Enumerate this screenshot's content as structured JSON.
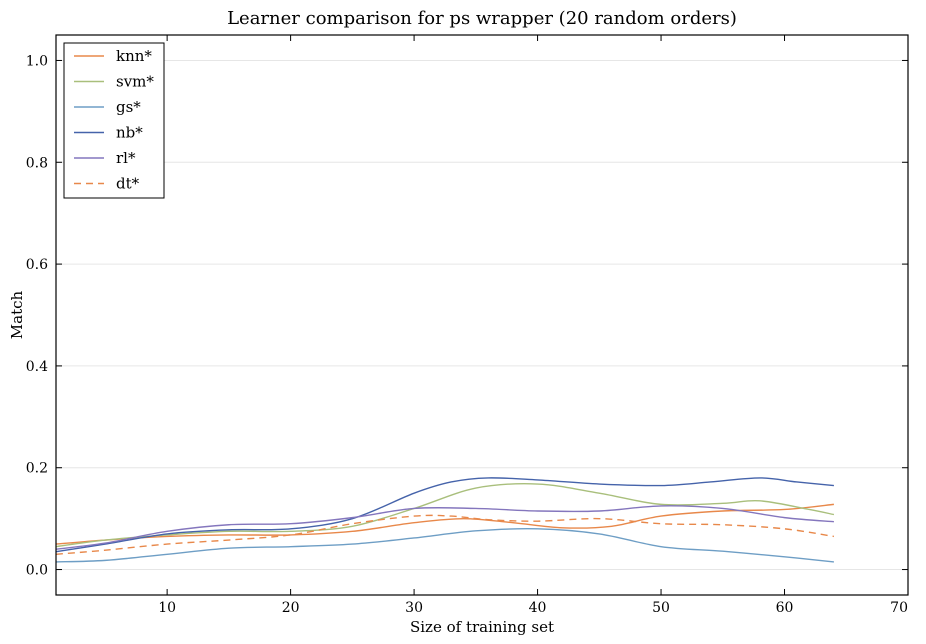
{
  "chart_data": {
    "type": "line",
    "title": "Learner comparison for ps wrapper (20 random orders)",
    "xlabel": "Size of training set",
    "ylabel": "Match",
    "xlim": [
      1,
      70
    ],
    "ylim": [
      -0.05,
      1.05
    ],
    "xticks": [
      10,
      20,
      30,
      40,
      50,
      60,
      70
    ],
    "yticks": [
      0.0,
      0.2,
      0.4,
      0.6,
      0.8,
      1.0
    ],
    "xtick_labels": [
      "10",
      "20",
      "30",
      "40",
      "50",
      "60",
      "70"
    ],
    "ytick_labels": [
      "0.0",
      "0.2",
      "0.4",
      "0.6",
      "0.8",
      "1.0"
    ],
    "grid": "horizontal",
    "legend_position": "top-left",
    "series": [
      {
        "name": "knn*",
        "color": "#e8884a",
        "dash": false,
        "x": [
          1,
          5,
          10,
          15,
          20,
          25,
          30,
          34,
          38,
          42,
          46,
          50,
          55,
          60,
          64
        ],
        "y": [
          0.05,
          0.058,
          0.065,
          0.068,
          0.068,
          0.075,
          0.092,
          0.1,
          0.092,
          0.082,
          0.085,
          0.105,
          0.115,
          0.118,
          0.128
        ]
      },
      {
        "name": "svm*",
        "color": "#a9bf7c",
        "dash": false,
        "x": [
          1,
          5,
          10,
          15,
          20,
          25,
          30,
          35,
          40,
          45,
          50,
          55,
          58,
          62,
          64
        ],
        "y": [
          0.045,
          0.058,
          0.068,
          0.075,
          0.075,
          0.085,
          0.12,
          0.16,
          0.168,
          0.15,
          0.128,
          0.13,
          0.135,
          0.118,
          0.108
        ]
      },
      {
        "name": "gs*",
        "color": "#6e9ec5",
        "dash": false,
        "x": [
          1,
          5,
          10,
          15,
          20,
          25,
          30,
          35,
          40,
          45,
          50,
          55,
          60,
          64
        ],
        "y": [
          0.015,
          0.018,
          0.03,
          0.042,
          0.045,
          0.05,
          0.062,
          0.076,
          0.08,
          0.07,
          0.045,
          0.036,
          0.025,
          0.015
        ]
      },
      {
        "name": "nb*",
        "color": "#4563aa",
        "dash": false,
        "x": [
          1,
          5,
          10,
          15,
          20,
          25,
          30,
          33,
          36,
          40,
          45,
          50,
          54,
          58,
          61,
          64
        ],
        "y": [
          0.035,
          0.05,
          0.07,
          0.078,
          0.08,
          0.1,
          0.15,
          0.172,
          0.18,
          0.176,
          0.168,
          0.165,
          0.172,
          0.18,
          0.172,
          0.165
        ]
      },
      {
        "name": "rl*",
        "color": "#8476bd",
        "dash": false,
        "x": [
          1,
          5,
          10,
          15,
          20,
          25,
          30,
          35,
          40,
          45,
          50,
          55,
          60,
          64
        ],
        "y": [
          0.04,
          0.052,
          0.075,
          0.088,
          0.09,
          0.102,
          0.12,
          0.12,
          0.115,
          0.115,
          0.125,
          0.12,
          0.102,
          0.094
        ]
      },
      {
        "name": "dt*",
        "color": "#e8884a",
        "dash": true,
        "x": [
          1,
          5,
          10,
          15,
          20,
          25,
          30,
          33,
          36,
          40,
          45,
          50,
          55,
          60,
          64
        ],
        "y": [
          0.03,
          0.038,
          0.05,
          0.058,
          0.068,
          0.09,
          0.105,
          0.105,
          0.098,
          0.095,
          0.1,
          0.09,
          0.088,
          0.08,
          0.065
        ]
      }
    ]
  }
}
